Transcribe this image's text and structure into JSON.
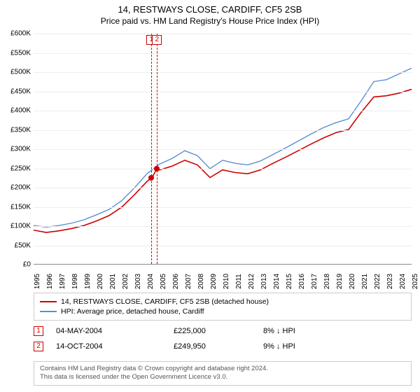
{
  "title": "14, RESTWAYS CLOSE, CARDIFF, CF5 2SB",
  "subtitle": "Price paid vs. HM Land Registry's House Price Index (HPI)",
  "chart": {
    "type": "line",
    "ylim": [
      0,
      600000
    ],
    "ytick_step": 50000,
    "ytick_labels": [
      "£0",
      "£50K",
      "£100K",
      "£150K",
      "£200K",
      "£250K",
      "£300K",
      "£350K",
      "£400K",
      "£450K",
      "£500K",
      "£550K",
      "£600K"
    ],
    "xlim": [
      1995,
      2025
    ],
    "xtick_step": 1,
    "xtick_labels": [
      "1995",
      "1996",
      "1997",
      "1998",
      "1999",
      "2000",
      "2001",
      "2002",
      "2003",
      "2004",
      "2005",
      "2006",
      "2007",
      "2008",
      "2009",
      "2010",
      "2011",
      "2012",
      "2013",
      "2014",
      "2015",
      "2016",
      "2017",
      "2018",
      "2019",
      "2020",
      "2021",
      "2022",
      "2023",
      "2024",
      "2025"
    ],
    "grid_color": "#eeeeee",
    "background_color": "#ffffff",
    "series": [
      {
        "name": "property",
        "color": "#cc0000",
        "width": 1.6,
        "points": [
          [
            1995,
            88
          ],
          [
            1996,
            82
          ],
          [
            1997,
            86
          ],
          [
            1998,
            92
          ],
          [
            1999,
            100
          ],
          [
            2000,
            112
          ],
          [
            2001,
            126
          ],
          [
            2002,
            148
          ],
          [
            2003,
            180
          ],
          [
            2004,
            215
          ],
          [
            2004.4,
            225
          ],
          [
            2004.8,
            249
          ],
          [
            2005,
            245
          ],
          [
            2006,
            255
          ],
          [
            2007,
            270
          ],
          [
            2008,
            258
          ],
          [
            2009,
            225
          ],
          [
            2010,
            245
          ],
          [
            2011,
            238
          ],
          [
            2012,
            235
          ],
          [
            2013,
            245
          ],
          [
            2014,
            262
          ],
          [
            2015,
            278
          ],
          [
            2016,
            295
          ],
          [
            2017,
            312
          ],
          [
            2018,
            328
          ],
          [
            2019,
            342
          ],
          [
            2020,
            350
          ],
          [
            2021,
            395
          ],
          [
            2022,
            435
          ],
          [
            2023,
            438
          ],
          [
            2024,
            445
          ],
          [
            2025,
            455
          ]
        ]
      },
      {
        "name": "hpi",
        "color": "#5b8fd6",
        "width": 1.4,
        "points": [
          [
            1995,
            100
          ],
          [
            1996,
            96
          ],
          [
            1997,
            100
          ],
          [
            1998,
            106
          ],
          [
            1999,
            115
          ],
          [
            2000,
            128
          ],
          [
            2001,
            142
          ],
          [
            2002,
            165
          ],
          [
            2003,
            198
          ],
          [
            2004,
            235
          ],
          [
            2005,
            260
          ],
          [
            2006,
            275
          ],
          [
            2007,
            295
          ],
          [
            2008,
            282
          ],
          [
            2009,
            248
          ],
          [
            2010,
            270
          ],
          [
            2011,
            262
          ],
          [
            2012,
            258
          ],
          [
            2013,
            268
          ],
          [
            2014,
            285
          ],
          [
            2015,
            302
          ],
          [
            2016,
            320
          ],
          [
            2017,
            338
          ],
          [
            2018,
            355
          ],
          [
            2019,
            368
          ],
          [
            2020,
            378
          ],
          [
            2021,
            425
          ],
          [
            2022,
            475
          ],
          [
            2023,
            480
          ],
          [
            2024,
            495
          ],
          [
            2025,
            510
          ]
        ]
      }
    ],
    "sale_markers": [
      {
        "n": "1",
        "x": 2004.34,
        "color": "#cc0000",
        "point_y": 225
      },
      {
        "n": "2",
        "x": 2004.79,
        "color": "#cc0000",
        "point_y": 249
      }
    ]
  },
  "legend": {
    "items": [
      {
        "color": "#cc0000",
        "label": "14, RESTWAYS CLOSE, CARDIFF, CF5 2SB (detached house)"
      },
      {
        "color": "#5b8fd6",
        "label": "HPI: Average price, detached house, Cardiff"
      }
    ]
  },
  "sales": [
    {
      "n": "1",
      "color": "#cc0000",
      "date": "04-MAY-2004",
      "price": "£225,000",
      "pct": "8% ↓ HPI"
    },
    {
      "n": "2",
      "color": "#cc0000",
      "date": "14-OCT-2004",
      "price": "£249,950",
      "pct": "9% ↓ HPI"
    }
  ],
  "footer": {
    "line1": "Contains HM Land Registry data © Crown copyright and database right 2024.",
    "line2": "This data is licensed under the Open Government Licence v3.0."
  }
}
